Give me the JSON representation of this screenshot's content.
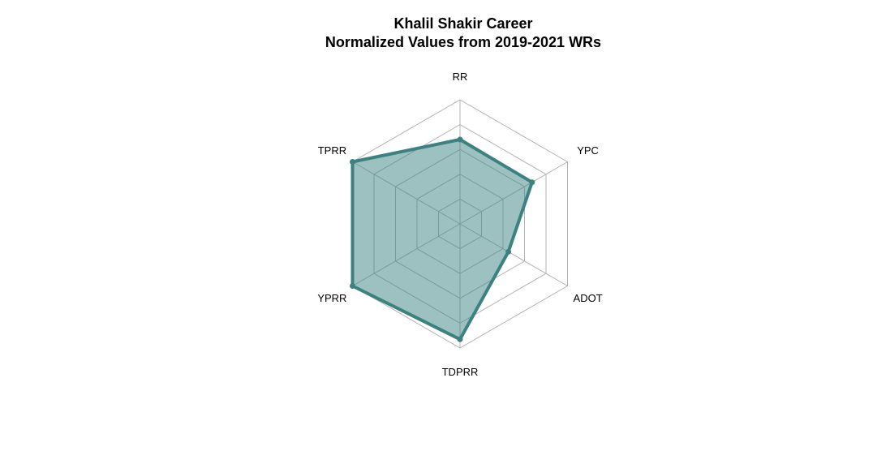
{
  "chart_data": {
    "type": "radar",
    "title_lines": [
      "Khalil Shakir Career",
      "Normalized Values from 2019-2021 WRs"
    ],
    "axes": [
      "RR",
      "YPC",
      "ADOT",
      "TDPRR",
      "YPRR",
      "TPRR"
    ],
    "range": [
      0,
      1
    ],
    "grid_levels": [
      0.2,
      0.4,
      0.6,
      0.8,
      1.0
    ],
    "series": [
      {
        "values": [
          0.68,
          0.67,
          0.45,
          0.93,
          1.0,
          1.0
        ]
      }
    ],
    "colors": {
      "line": "#3b8281",
      "fill": "#3b8281",
      "fill_opacity": 0.5,
      "grid": "#b4b4b4"
    }
  }
}
